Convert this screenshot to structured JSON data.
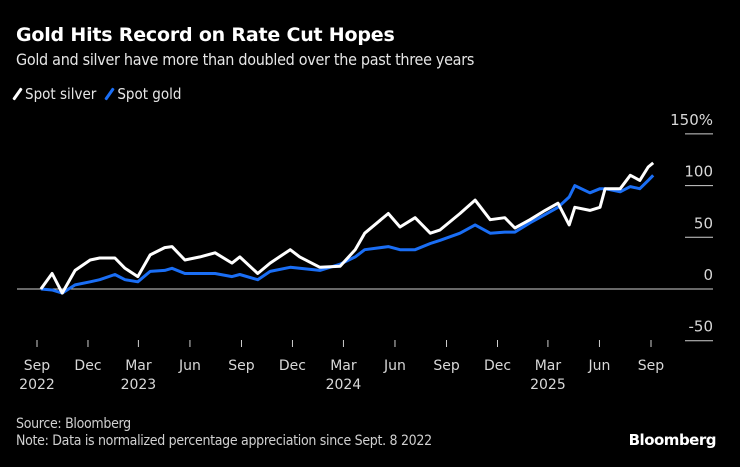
{
  "title": "Gold Hits Record on Rate Cut Hopes",
  "subtitle": "Gold and silver have more than doubled over the past three years",
  "source": "Source: Bloomberg",
  "note": "Note: Data is normalized percentage appreciation since Sept. 8 2022",
  "logo": "Bloomberg",
  "chart_data": {
    "type": "line",
    "title": "Gold Hits Record on Rate Cut Hopes",
    "subtitle": "Gold and silver have more than doubled over the past three years",
    "ylim": [
      -50,
      150
    ],
    "y_unit": "%",
    "y_ticks": [
      150,
      100,
      50,
      0,
      -50
    ],
    "y_tick_labels": [
      "150%",
      "100",
      "50",
      "0",
      "-50"
    ],
    "x_ticks": [
      "2022-09-01",
      "2022-12-01",
      "2023-03-01",
      "2023-06-01",
      "2023-09-01",
      "2023-12-01",
      "2024-03-01",
      "2024-06-01",
      "2024-09-01",
      "2024-12-01",
      "2025-03-01",
      "2025-06-01",
      "2025-09-01"
    ],
    "x_tick_labels": [
      "Sep",
      "Dec",
      "Mar",
      "Jun",
      "Sep",
      "Dec",
      "Mar",
      "Jun",
      "Sep",
      "Dec",
      "Mar",
      "Jun",
      "Sep"
    ],
    "x_year_labels": [
      "2022",
      "",
      "2023",
      "",
      "",
      "",
      "2024",
      "",
      "",
      "",
      "2025",
      "",
      ""
    ],
    "legend": "top-left",
    "grid": "right-side stubs",
    "series": [
      {
        "name": "Spot silver",
        "color": "#ffffff",
        "x": [
          "2022-09-08",
          "2022-09-28",
          "2022-10-16",
          "2022-11-08",
          "2022-12-05",
          "2022-12-22",
          "2023-01-18",
          "2023-02-05",
          "2023-02-28",
          "2023-03-22",
          "2023-04-17",
          "2023-04-30",
          "2023-05-23",
          "2023-06-19",
          "2023-07-16",
          "2023-08-15",
          "2023-08-29",
          "2023-09-30",
          "2023-10-22",
          "2023-11-27",
          "2023-12-14",
          "2024-01-19",
          "2024-02-24",
          "2024-03-22",
          "2024-04-08",
          "2024-05-20",
          "2024-06-10",
          "2024-07-07",
          "2024-08-03",
          "2024-08-20",
          "2024-09-25",
          "2024-10-22",
          "2024-11-18",
          "2024-12-14",
          "2025-01-01",
          "2025-01-28",
          "2025-02-24",
          "2025-03-19",
          "2025-04-08",
          "2025-04-18",
          "2025-05-15",
          "2025-06-02",
          "2025-06-11",
          "2025-07-08",
          "2025-07-26",
          "2025-08-12",
          "2025-08-27",
          "2025-09-05"
        ],
        "values": [
          0,
          15,
          -4,
          18,
          28,
          30,
          30,
          20,
          12,
          33,
          40,
          41,
          28,
          31,
          35,
          25,
          31,
          15,
          25,
          38,
          31,
          21,
          22,
          38,
          54,
          73,
          60,
          69,
          54,
          57,
          73,
          86,
          67,
          69,
          59,
          67,
          76,
          83,
          62,
          79,
          76,
          79,
          97,
          97,
          110,
          105,
          118,
          122
        ]
      },
      {
        "name": "Spot gold",
        "color": "#1a6ef5",
        "x": [
          "2022-09-08",
          "2022-09-28",
          "2022-10-16",
          "2022-11-08",
          "2022-12-05",
          "2022-12-22",
          "2023-01-18",
          "2023-02-05",
          "2023-02-28",
          "2023-03-22",
          "2023-04-17",
          "2023-04-30",
          "2023-05-23",
          "2023-06-19",
          "2023-07-16",
          "2023-08-15",
          "2023-08-29",
          "2023-09-30",
          "2023-10-22",
          "2023-11-27",
          "2023-12-14",
          "2024-01-19",
          "2024-02-24",
          "2024-03-22",
          "2024-04-08",
          "2024-05-20",
          "2024-06-10",
          "2024-07-07",
          "2024-08-03",
          "2024-08-20",
          "2024-09-25",
          "2024-10-22",
          "2024-11-18",
          "2024-12-14",
          "2025-01-01",
          "2025-01-28",
          "2025-02-24",
          "2025-03-19",
          "2025-04-08",
          "2025-04-18",
          "2025-05-15",
          "2025-06-02",
          "2025-06-11",
          "2025-07-08",
          "2025-07-26",
          "2025-08-12",
          "2025-08-27",
          "2025-09-05"
        ],
        "values": [
          0,
          -1,
          -4,
          4,
          7,
          9,
          14,
          9,
          7,
          17,
          18,
          20,
          15,
          15,
          15,
          12,
          14,
          9,
          17,
          21,
          20,
          18,
          24,
          31,
          38,
          41,
          38,
          38,
          44,
          47,
          54,
          62,
          54,
          55,
          55,
          64,
          72,
          79,
          89,
          100,
          93,
          97,
          97,
          94,
          99,
          97,
          105,
          110
        ]
      }
    ]
  }
}
